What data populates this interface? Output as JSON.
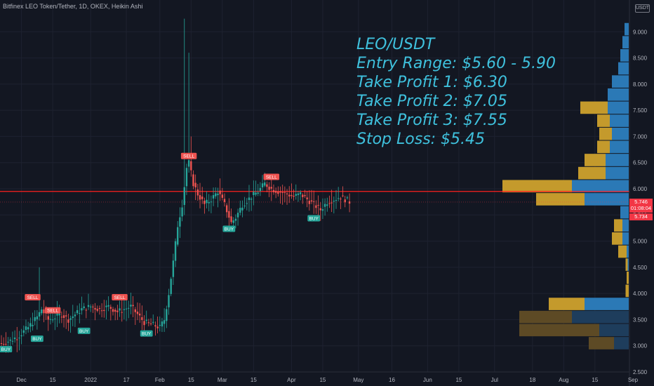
{
  "header": {
    "symbol_title": "Bitfinex LEO Token/Tether, 1D, OKEX, Heikin Ashi",
    "axis_currency": "USDT"
  },
  "annotation": {
    "lines": [
      "LEO/USDT",
      "Entry Range: $5.60 - 5.90",
      "Take Profit 1: $6.30",
      "Take Profit 2: $7.05",
      "Take Profit 3: $7.55",
      "Stop Loss: $5.45"
    ]
  },
  "price_tags": {
    "last_price": "5.746",
    "countdown": "01:08:04",
    "low_price": "5.734"
  },
  "colors": {
    "background": "#131722",
    "grid": "#1e2230",
    "up": "#26a69a",
    "down": "#ef5350",
    "horizontal_line": "#ff1f1f",
    "annotation": "#3fc1dd",
    "vp_up": "#2b79b6",
    "vp_down": "#c49a2c",
    "vp_up_dim": "#1e3d5c",
    "vp_down_dim": "#5d4a25",
    "buy": "#26a69a",
    "sell": "#ef5350"
  },
  "chart_data": {
    "type": "candlestick",
    "ylim": [
      2.5,
      9.5
    ],
    "y_ticks": [
      "9.000",
      "8.500",
      "8.000",
      "7.500",
      "7.000",
      "6.500",
      "6.000",
      "5.500",
      "5.000",
      "4.500",
      "4.000",
      "3.500",
      "3.000",
      "2.500"
    ],
    "y_tick_values": [
      9.0,
      8.5,
      8.0,
      7.5,
      7.0,
      6.5,
      6.0,
      5.5,
      5.0,
      4.5,
      4.0,
      3.5,
      3.0,
      2.5
    ],
    "x_ticks": [
      {
        "label": "Dec",
        "day": 9
      },
      {
        "label": "15",
        "day": 23
      },
      {
        "label": "2022",
        "day": 40
      },
      {
        "label": "17",
        "day": 56
      },
      {
        "label": "Feb",
        "day": 71
      },
      {
        "label": "15",
        "day": 85
      },
      {
        "label": "Mar",
        "day": 99
      },
      {
        "label": "15",
        "day": 113
      },
      {
        "label": "Apr",
        "day": 130
      },
      {
        "label": "15",
        "day": 144
      },
      {
        "label": "May",
        "day": 160
      },
      {
        "label": "16",
        "day": 175
      },
      {
        "label": "Jun",
        "day": 191
      },
      {
        "label": "15",
        "day": 205
      },
      {
        "label": "Jul",
        "day": 221
      },
      {
        "label": "18",
        "day": 238
      },
      {
        "label": "Aug",
        "day": 252
      },
      {
        "label": "15",
        "day": 266
      },
      {
        "label": "Sep",
        "day": 283
      }
    ],
    "horizontal_line": 5.95,
    "keypoints": [
      [
        0,
        3.05
      ],
      [
        4,
        3.1
      ],
      [
        8,
        3.2
      ],
      [
        12,
        3.35
      ],
      [
        16,
        3.55
      ],
      [
        18,
        3.7
      ],
      [
        21,
        3.5
      ],
      [
        24,
        3.55
      ],
      [
        27,
        3.6
      ],
      [
        30,
        3.5
      ],
      [
        33,
        3.6
      ],
      [
        36,
        3.7
      ],
      [
        40,
        3.75
      ],
      [
        44,
        3.7
      ],
      [
        48,
        3.75
      ],
      [
        52,
        3.65
      ],
      [
        55,
        3.7
      ],
      [
        58,
        3.75
      ],
      [
        61,
        3.6
      ],
      [
        64,
        3.45
      ],
      [
        68,
        3.4
      ],
      [
        71,
        3.35
      ],
      [
        73,
        3.5
      ],
      [
        75,
        4.0
      ],
      [
        77,
        4.6
      ],
      [
        79,
        5.3
      ],
      [
        81,
        5.7
      ],
      [
        83,
        6.4
      ],
      [
        84,
        6.5
      ],
      [
        86,
        6.1
      ],
      [
        88,
        5.9
      ],
      [
        91,
        5.7
      ],
      [
        94,
        5.8
      ],
      [
        97,
        5.95
      ],
      [
        100,
        5.7
      ],
      [
        103,
        5.35
      ],
      [
        105,
        5.45
      ],
      [
        108,
        5.7
      ],
      [
        112,
        5.85
      ],
      [
        115,
        5.95
      ],
      [
        118,
        6.1
      ],
      [
        121,
        6.0
      ],
      [
        124,
        5.95
      ],
      [
        128,
        5.9
      ],
      [
        131,
        5.85
      ],
      [
        134,
        5.9
      ],
      [
        137,
        5.8
      ],
      [
        140,
        5.7
      ],
      [
        143,
        5.6
      ],
      [
        146,
        5.75
      ],
      [
        149,
        5.8
      ],
      [
        152,
        5.85
      ],
      [
        154,
        5.8
      ],
      [
        156,
        5.75
      ]
    ],
    "spikes": [
      {
        "day": 17,
        "high": 4.5
      },
      {
        "day": 82,
        "high": 9.25
      },
      {
        "day": 84,
        "high": 8.6
      },
      {
        "day": 85,
        "high": 7.0
      }
    ],
    "signals": [
      {
        "label": "BUY",
        "day": 2,
        "price": 3.05,
        "side": "buy"
      },
      {
        "label": "SELL",
        "day": 14,
        "price": 3.8,
        "side": "sell"
      },
      {
        "label": "BUY",
        "day": 16,
        "price": 3.25,
        "side": "buy"
      },
      {
        "label": "SELL",
        "day": 23,
        "price": 3.55,
        "side": "sell"
      },
      {
        "label": "BUY",
        "day": 37,
        "price": 3.4,
        "side": "buy"
      },
      {
        "label": "SELL",
        "day": 53,
        "price": 3.8,
        "side": "sell"
      },
      {
        "label": "BUY",
        "day": 65,
        "price": 3.35,
        "side": "buy"
      },
      {
        "label": "SELL",
        "day": 84,
        "price": 6.5,
        "side": "sell"
      },
      {
        "label": "BUY",
        "day": 102,
        "price": 5.35,
        "side": "buy"
      },
      {
        "label": "SELL",
        "day": 121,
        "price": 6.1,
        "side": "sell"
      },
      {
        "label": "BUY",
        "day": 140,
        "price": 5.55,
        "side": "buy"
      }
    ],
    "volume_profile": [
      {
        "price": 9.05,
        "up": 0.04,
        "down": 0.0
      },
      {
        "price": 8.8,
        "up": 0.06,
        "down": 0.0
      },
      {
        "price": 8.55,
        "up": 0.08,
        "down": 0.0
      },
      {
        "price": 8.3,
        "up": 0.1,
        "down": 0.0
      },
      {
        "price": 8.05,
        "up": 0.16,
        "down": 0.0
      },
      {
        "price": 7.8,
        "up": 0.2,
        "down": 0.0
      },
      {
        "price": 7.55,
        "up": 0.2,
        "down": 0.26
      },
      {
        "price": 7.3,
        "up": 0.18,
        "down": 0.12
      },
      {
        "price": 7.05,
        "up": 0.16,
        "down": 0.12
      },
      {
        "price": 6.8,
        "up": 0.18,
        "down": 0.12
      },
      {
        "price": 6.55,
        "up": 0.22,
        "down": 0.2
      },
      {
        "price": 6.3,
        "up": 0.22,
        "down": 0.26
      },
      {
        "price": 6.05,
        "up": 0.54,
        "down": 0.66
      },
      {
        "price": 5.8,
        "up": 0.42,
        "down": 0.46
      },
      {
        "price": 5.55,
        "up": 0.08,
        "down": 0.0
      },
      {
        "price": 5.3,
        "up": 0.06,
        "down": 0.08
      },
      {
        "price": 5.05,
        "up": 0.06,
        "down": 0.1
      },
      {
        "price": 4.8,
        "up": 0.02,
        "down": 0.08
      },
      {
        "price": 4.55,
        "up": 0.01,
        "down": 0.02
      },
      {
        "price": 4.3,
        "up": 0.0,
        "down": 0.02
      },
      {
        "price": 4.05,
        "up": 0.0,
        "down": 0.03
      },
      {
        "price": 3.8,
        "up": 0.42,
        "down": 0.34
      },
      {
        "price": 3.55,
        "up": 0.54,
        "down": 0.5,
        "dim": true
      },
      {
        "price": 3.3,
        "up": 0.28,
        "down": 0.76,
        "dim": true
      },
      {
        "price": 3.05,
        "up": 0.14,
        "down": 0.24,
        "dim": true
      }
    ]
  }
}
